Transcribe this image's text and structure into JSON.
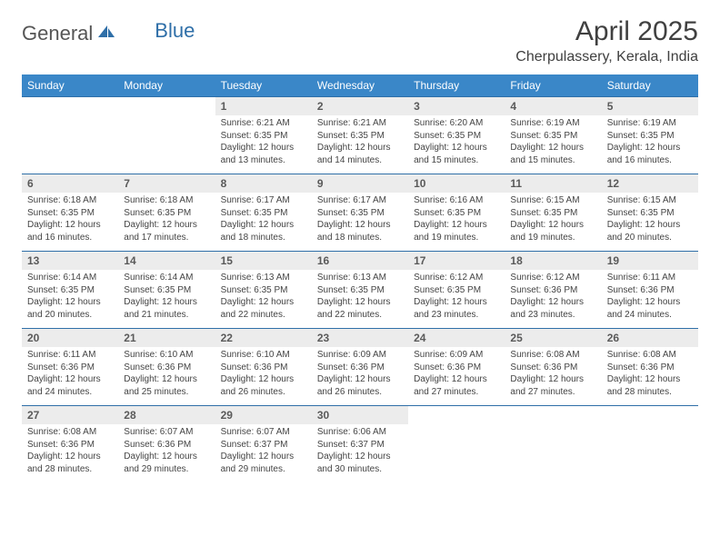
{
  "logo": {
    "general": "General",
    "blue": "Blue"
  },
  "title": "April 2025",
  "location": "Cherpulassery, Kerala, India",
  "colors": {
    "header_bg": "#3a87c8",
    "header_text": "#ffffff",
    "daynum_bg": "#ececec",
    "border": "#2f6fa8",
    "logo_gray": "#555555",
    "logo_blue": "#2f6fa8"
  },
  "day_headers": [
    "Sunday",
    "Monday",
    "Tuesday",
    "Wednesday",
    "Thursday",
    "Friday",
    "Saturday"
  ],
  "weeks": [
    {
      "nums": [
        "",
        "",
        "1",
        "2",
        "3",
        "4",
        "5"
      ],
      "cells": [
        null,
        null,
        {
          "sunrise": "Sunrise: 6:21 AM",
          "sunset": "Sunset: 6:35 PM",
          "daylight": "Daylight: 12 hours and 13 minutes."
        },
        {
          "sunrise": "Sunrise: 6:21 AM",
          "sunset": "Sunset: 6:35 PM",
          "daylight": "Daylight: 12 hours and 14 minutes."
        },
        {
          "sunrise": "Sunrise: 6:20 AM",
          "sunset": "Sunset: 6:35 PM",
          "daylight": "Daylight: 12 hours and 15 minutes."
        },
        {
          "sunrise": "Sunrise: 6:19 AM",
          "sunset": "Sunset: 6:35 PM",
          "daylight": "Daylight: 12 hours and 15 minutes."
        },
        {
          "sunrise": "Sunrise: 6:19 AM",
          "sunset": "Sunset: 6:35 PM",
          "daylight": "Daylight: 12 hours and 16 minutes."
        }
      ]
    },
    {
      "nums": [
        "6",
        "7",
        "8",
        "9",
        "10",
        "11",
        "12"
      ],
      "cells": [
        {
          "sunrise": "Sunrise: 6:18 AM",
          "sunset": "Sunset: 6:35 PM",
          "daylight": "Daylight: 12 hours and 16 minutes."
        },
        {
          "sunrise": "Sunrise: 6:18 AM",
          "sunset": "Sunset: 6:35 PM",
          "daylight": "Daylight: 12 hours and 17 minutes."
        },
        {
          "sunrise": "Sunrise: 6:17 AM",
          "sunset": "Sunset: 6:35 PM",
          "daylight": "Daylight: 12 hours and 18 minutes."
        },
        {
          "sunrise": "Sunrise: 6:17 AM",
          "sunset": "Sunset: 6:35 PM",
          "daylight": "Daylight: 12 hours and 18 minutes."
        },
        {
          "sunrise": "Sunrise: 6:16 AM",
          "sunset": "Sunset: 6:35 PM",
          "daylight": "Daylight: 12 hours and 19 minutes."
        },
        {
          "sunrise": "Sunrise: 6:15 AM",
          "sunset": "Sunset: 6:35 PM",
          "daylight": "Daylight: 12 hours and 19 minutes."
        },
        {
          "sunrise": "Sunrise: 6:15 AM",
          "sunset": "Sunset: 6:35 PM",
          "daylight": "Daylight: 12 hours and 20 minutes."
        }
      ]
    },
    {
      "nums": [
        "13",
        "14",
        "15",
        "16",
        "17",
        "18",
        "19"
      ],
      "cells": [
        {
          "sunrise": "Sunrise: 6:14 AM",
          "sunset": "Sunset: 6:35 PM",
          "daylight": "Daylight: 12 hours and 20 minutes."
        },
        {
          "sunrise": "Sunrise: 6:14 AM",
          "sunset": "Sunset: 6:35 PM",
          "daylight": "Daylight: 12 hours and 21 minutes."
        },
        {
          "sunrise": "Sunrise: 6:13 AM",
          "sunset": "Sunset: 6:35 PM",
          "daylight": "Daylight: 12 hours and 22 minutes."
        },
        {
          "sunrise": "Sunrise: 6:13 AM",
          "sunset": "Sunset: 6:35 PM",
          "daylight": "Daylight: 12 hours and 22 minutes."
        },
        {
          "sunrise": "Sunrise: 6:12 AM",
          "sunset": "Sunset: 6:35 PM",
          "daylight": "Daylight: 12 hours and 23 minutes."
        },
        {
          "sunrise": "Sunrise: 6:12 AM",
          "sunset": "Sunset: 6:36 PM",
          "daylight": "Daylight: 12 hours and 23 minutes."
        },
        {
          "sunrise": "Sunrise: 6:11 AM",
          "sunset": "Sunset: 6:36 PM",
          "daylight": "Daylight: 12 hours and 24 minutes."
        }
      ]
    },
    {
      "nums": [
        "20",
        "21",
        "22",
        "23",
        "24",
        "25",
        "26"
      ],
      "cells": [
        {
          "sunrise": "Sunrise: 6:11 AM",
          "sunset": "Sunset: 6:36 PM",
          "daylight": "Daylight: 12 hours and 24 minutes."
        },
        {
          "sunrise": "Sunrise: 6:10 AM",
          "sunset": "Sunset: 6:36 PM",
          "daylight": "Daylight: 12 hours and 25 minutes."
        },
        {
          "sunrise": "Sunrise: 6:10 AM",
          "sunset": "Sunset: 6:36 PM",
          "daylight": "Daylight: 12 hours and 26 minutes."
        },
        {
          "sunrise": "Sunrise: 6:09 AM",
          "sunset": "Sunset: 6:36 PM",
          "daylight": "Daylight: 12 hours and 26 minutes."
        },
        {
          "sunrise": "Sunrise: 6:09 AM",
          "sunset": "Sunset: 6:36 PM",
          "daylight": "Daylight: 12 hours and 27 minutes."
        },
        {
          "sunrise": "Sunrise: 6:08 AM",
          "sunset": "Sunset: 6:36 PM",
          "daylight": "Daylight: 12 hours and 27 minutes."
        },
        {
          "sunrise": "Sunrise: 6:08 AM",
          "sunset": "Sunset: 6:36 PM",
          "daylight": "Daylight: 12 hours and 28 minutes."
        }
      ]
    },
    {
      "nums": [
        "27",
        "28",
        "29",
        "30",
        "",
        "",
        ""
      ],
      "cells": [
        {
          "sunrise": "Sunrise: 6:08 AM",
          "sunset": "Sunset: 6:36 PM",
          "daylight": "Daylight: 12 hours and 28 minutes."
        },
        {
          "sunrise": "Sunrise: 6:07 AM",
          "sunset": "Sunset: 6:36 PM",
          "daylight": "Daylight: 12 hours and 29 minutes."
        },
        {
          "sunrise": "Sunrise: 6:07 AM",
          "sunset": "Sunset: 6:37 PM",
          "daylight": "Daylight: 12 hours and 29 minutes."
        },
        {
          "sunrise": "Sunrise: 6:06 AM",
          "sunset": "Sunset: 6:37 PM",
          "daylight": "Daylight: 12 hours and 30 minutes."
        },
        null,
        null,
        null
      ]
    }
  ]
}
